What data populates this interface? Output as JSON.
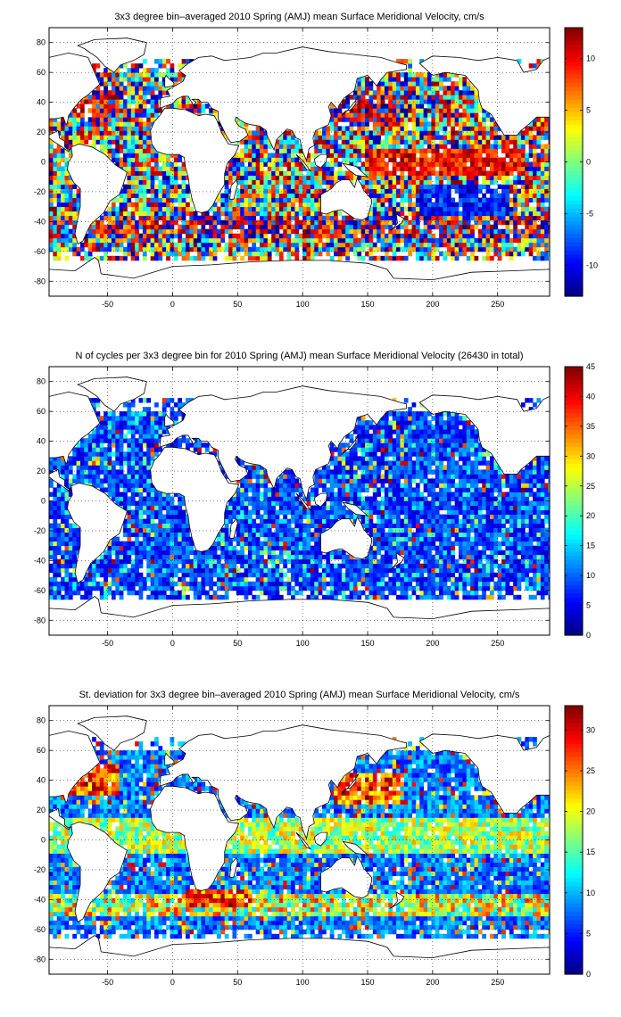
{
  "figure": {
    "panels": [
      {
        "title": "3x3 degree bin–averaged 2010 Spring (AMJ) mean Surface Meridional Velocity, cm/s",
        "colorbar": {
          "min": -13,
          "max": 13,
          "ticks": [
            "-10",
            "-5",
            "0",
            "5",
            "10"
          ],
          "tick_values": [
            -10,
            -5,
            0,
            5,
            10
          ]
        },
        "pattern": "velocity"
      },
      {
        "title": "N of cycles per 3x3 degree bin for 2010 Spring (AMJ) mean Surface Meridional Velocity (26430 in total)",
        "colorbar": {
          "min": 0,
          "max": 45,
          "ticks": [
            "0",
            "5",
            "10",
            "15",
            "20",
            "25",
            "30",
            "35",
            "40",
            "45"
          ],
          "tick_values": [
            0,
            5,
            10,
            15,
            20,
            25,
            30,
            35,
            40,
            45
          ]
        },
        "pattern": "count"
      },
      {
        "title": "St. deviation for 3x3 degree bin–averaged 2010 Spring (AMJ) mean Surface Meridional Velocity, cm/s",
        "colorbar": {
          "min": 0,
          "max": 33,
          "ticks": [
            "0",
            "5",
            "10",
            "15",
            "20",
            "25",
            "30"
          ],
          "tick_values": [
            0,
            5,
            10,
            15,
            20,
            25,
            30
          ]
        },
        "pattern": "stdev"
      }
    ],
    "colormap": "jet"
  },
  "chart_data": [
    {
      "type": "heatmap",
      "title": "3x3 degree bin–averaged 2010 Spring (AMJ) mean Surface Meridional Velocity, cm/s",
      "xlim": [
        -95,
        290
      ],
      "ylim": [
        -90,
        90
      ],
      "xticks": [
        -50,
        0,
        50,
        100,
        150,
        200,
        250
      ],
      "yticks": [
        -80,
        -60,
        -40,
        -20,
        0,
        20,
        40,
        60,
        80
      ],
      "bin_size_deg": 3,
      "grid": true,
      "grid_style": "dotted",
      "colorbar_range": [
        -13,
        13
      ],
      "summary": "Ocean bins from about -64 to 66 latitude; values mostly between -13 and 13 cm/s with speckled positive/negative pattern; strong positive (northward) values in Kuroshio/Gulf Stream regions and along southern Indian/Atlantic Ocean around -40 latitude."
    },
    {
      "type": "heatmap",
      "title": "N of cycles per 3x3 degree bin for 2010 Spring (AMJ) mean Surface Meridional Velocity (26430 in total)",
      "xlim": [
        -95,
        290
      ],
      "ylim": [
        -90,
        90
      ],
      "xticks": [
        -50,
        0,
        50,
        100,
        150,
        200,
        250
      ],
      "yticks": [
        -80,
        -60,
        -40,
        -20,
        0,
        20,
        40,
        60,
        80
      ],
      "bin_size_deg": 3,
      "grid": true,
      "grid_style": "dotted",
      "colorbar_range": [
        0,
        45
      ],
      "total": 26430,
      "summary": "Most bins have 3-15 cycles; scattered higher counts (20-45) in the North Pacific, North Atlantic and Southern Ocean."
    },
    {
      "type": "heatmap",
      "title": "St. deviation for 3x3 degree bin–averaged 2010 Spring (AMJ) mean Surface Meridional Velocity, cm/s",
      "xlim": [
        -95,
        290
      ],
      "ylim": [
        -90,
        90
      ],
      "xticks": [
        -50,
        0,
        50,
        100,
        150,
        200,
        250
      ],
      "yticks": [
        -80,
        -60,
        -40,
        -20,
        0,
        20,
        40,
        60,
        80
      ],
      "bin_size_deg": 3,
      "grid": true,
      "grid_style": "dotted",
      "colorbar_range": [
        0,
        33
      ],
      "summary": "Interior ocean mostly 5-12 cm/s; highest values (25-33) in western boundary currents (Kuroshio, Gulf Stream), Agulhas region and Antarctic Circumpolar Current near -40 to -50 latitude."
    }
  ]
}
